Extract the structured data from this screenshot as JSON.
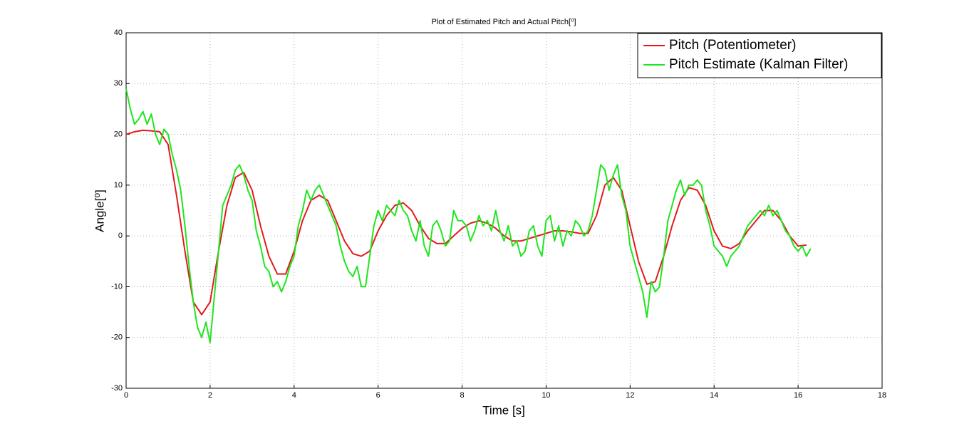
{
  "chart_data": {
    "type": "line",
    "title": "Plot of Estimated Pitch and Actual Pitch[⁰]",
    "x_label": "Time [s]",
    "y_label": "Angle[⁰]",
    "xlim": [
      0,
      18
    ],
    "xticks": [
      0,
      2,
      4,
      6,
      8,
      10,
      12,
      14,
      16,
      18
    ],
    "ylim": [
      -30,
      40
    ],
    "yticks": [
      -30,
      -20,
      -10,
      0,
      10,
      20,
      30,
      40
    ],
    "grid": true,
    "legend": "northeast",
    "series": [
      {
        "name": "Pitch (Potentiometer)",
        "color": "#e31a1c",
        "x": [
          0,
          0.2,
          0.4,
          0.6,
          0.8,
          1,
          1.2,
          1.4,
          1.6,
          1.8,
          2,
          2.2,
          2.4,
          2.6,
          2.8,
          3,
          3.2,
          3.4,
          3.6,
          3.8,
          4,
          4.2,
          4.4,
          4.6,
          4.8,
          5,
          5.2,
          5.4,
          5.6,
          5.8,
          6,
          6.2,
          6.4,
          6.6,
          6.8,
          7,
          7.2,
          7.4,
          7.6,
          7.8,
          8,
          8.2,
          8.4,
          8.6,
          8.8,
          9,
          9.2,
          9.4,
          9.6,
          9.8,
          10,
          10.2,
          10.4,
          10.6,
          10.8,
          11,
          11.2,
          11.4,
          11.6,
          11.8,
          12,
          12.2,
          12.4,
          12.6,
          12.8,
          13,
          13.2,
          13.4,
          13.6,
          13.8,
          14,
          14.2,
          14.4,
          14.6,
          14.8,
          15,
          15.2,
          15.4,
          15.6,
          15.8,
          16,
          16.2
        ],
        "values": [
          20,
          20.5,
          20.8,
          20.7,
          20.5,
          18,
          8,
          -3,
          -13,
          -15.5,
          -13,
          -3,
          6,
          11.5,
          12.5,
          9,
          2,
          -4,
          -7.5,
          -7.5,
          -3,
          3,
          7,
          8,
          7,
          3,
          -1,
          -3.5,
          -4,
          -3,
          1,
          4,
          6,
          6.5,
          5,
          2,
          -0.5,
          -1.5,
          -1.5,
          0,
          1.5,
          2.5,
          3,
          2.5,
          1.5,
          0,
          -1,
          -1,
          -0.5,
          0,
          0.5,
          1,
          1,
          0.8,
          0.5,
          0.5,
          4,
          10,
          11.5,
          9,
          2,
          -5,
          -9.5,
          -9,
          -4,
          2,
          7,
          9.5,
          9,
          6,
          1,
          -2,
          -2.5,
          -1.5,
          1,
          3,
          5,
          5,
          3,
          0,
          -2,
          -1.8
        ]
      },
      {
        "name": "Pitch Estimate (Kalman Filter)",
        "color": "#1ee61e",
        "x": [
          0,
          0.1,
          0.2,
          0.3,
          0.4,
          0.5,
          0.6,
          0.7,
          0.8,
          0.9,
          1,
          1.1,
          1.2,
          1.3,
          1.4,
          1.5,
          1.6,
          1.7,
          1.8,
          1.9,
          2,
          2.1,
          2.2,
          2.3,
          2.4,
          2.5,
          2.6,
          2.7,
          2.8,
          2.9,
          3,
          3.1,
          3.2,
          3.3,
          3.4,
          3.5,
          3.6,
          3.7,
          3.8,
          3.9,
          4,
          4.1,
          4.2,
          4.3,
          4.4,
          4.5,
          4.6,
          4.7,
          4.8,
          4.9,
          5,
          5.1,
          5.2,
          5.3,
          5.4,
          5.5,
          5.6,
          5.7,
          5.8,
          5.9,
          6,
          6.1,
          6.2,
          6.3,
          6.4,
          6.5,
          6.6,
          6.7,
          6.8,
          6.9,
          7,
          7.1,
          7.2,
          7.3,
          7.4,
          7.5,
          7.6,
          7.7,
          7.8,
          7.9,
          8,
          8.1,
          8.2,
          8.3,
          8.4,
          8.5,
          8.6,
          8.7,
          8.8,
          8.9,
          9,
          9.1,
          9.2,
          9.3,
          9.4,
          9.5,
          9.6,
          9.7,
          9.8,
          9.9,
          10,
          10.1,
          10.2,
          10.3,
          10.4,
          10.5,
          10.6,
          10.7,
          10.8,
          10.9,
          11,
          11.1,
          11.2,
          11.3,
          11.4,
          11.5,
          11.6,
          11.7,
          11.8,
          11.9,
          12,
          12.1,
          12.2,
          12.3,
          12.4,
          12.5,
          12.6,
          12.7,
          12.8,
          12.9,
          13,
          13.1,
          13.2,
          13.3,
          13.4,
          13.5,
          13.6,
          13.7,
          13.8,
          13.9,
          14,
          14.1,
          14.2,
          14.3,
          14.4,
          14.5,
          14.6,
          14.7,
          14.8,
          14.9,
          15,
          15.1,
          15.2,
          15.3,
          15.4,
          15.5,
          15.6,
          15.7,
          15.8,
          15.9,
          16,
          16.1,
          16.2,
          16.3
        ],
        "values": [
          29,
          25,
          22,
          23,
          24.5,
          22,
          24,
          20,
          18,
          21,
          20,
          16,
          13,
          9,
          2,
          -6,
          -13,
          -18,
          -20,
          -17,
          -21,
          -12,
          -3,
          6,
          8,
          10,
          13,
          14,
          12,
          9,
          7,
          1,
          -2,
          -6,
          -7,
          -10,
          -9,
          -11,
          -9,
          -6,
          -4,
          2,
          5,
          9,
          7,
          9,
          10,
          8,
          6,
          4,
          2,
          -2,
          -5,
          -7,
          -8,
          -6,
          -10,
          -10,
          -4,
          2,
          5,
          3,
          6,
          5,
          4,
          7,
          5,
          4,
          1,
          -1,
          3,
          -2,
          -4,
          2,
          3,
          1,
          -2,
          -1,
          5,
          3,
          3,
          2,
          -1,
          1,
          4,
          2,
          3,
          1,
          5,
          1,
          -1,
          2,
          -2,
          -1,
          -4,
          -3,
          1,
          2,
          -2,
          -4,
          3,
          4,
          -1,
          2,
          -2,
          1,
          0,
          3,
          2,
          0,
          1,
          4,
          9,
          14,
          13,
          9,
          12,
          14,
          8,
          5,
          -2,
          -5,
          -8,
          -11,
          -16,
          -9,
          -11,
          -10,
          -4,
          3,
          6,
          9,
          11,
          8,
          10,
          10,
          11,
          10,
          5,
          2,
          -2,
          -3,
          -4,
          -6,
          -4,
          -3,
          -2,
          0,
          2,
          3,
          4,
          5,
          4,
          6,
          4,
          5,
          3,
          1,
          0,
          -2,
          -3,
          -2,
          -4,
          -2.5
        ]
      }
    ]
  }
}
